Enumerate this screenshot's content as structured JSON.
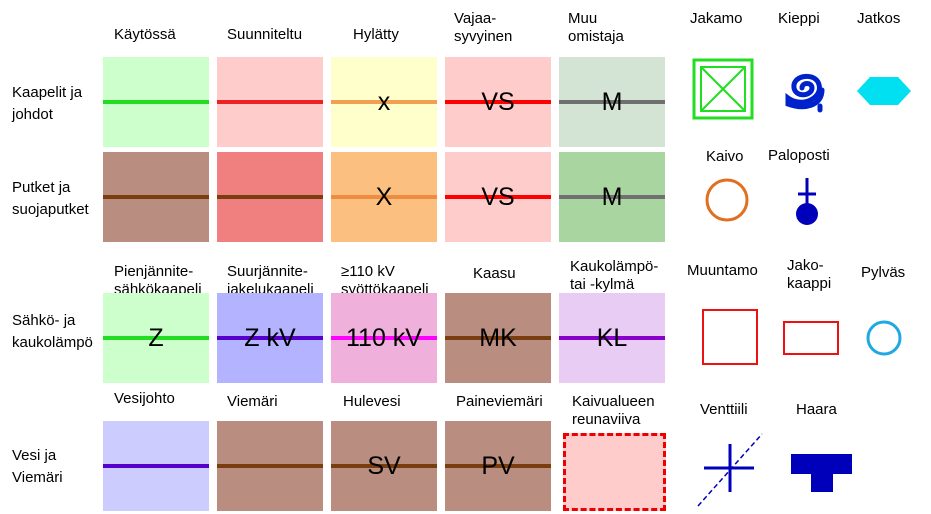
{
  "columns": [
    "Käytössä",
    "Suunniteltu",
    "Hylätty",
    "Vajaa-\nsyvyinen",
    "Muu\nomistaja"
  ],
  "rows": {
    "kaapelit": "Kaapelit ja\njohdot",
    "putket": "Putket ja\nsuojaputket",
    "sahko": "Sähkö- ja\nkaukolämpö",
    "vesi": "Vesi ja\nViemäri"
  },
  "grid_row1": [
    {
      "bg": "#ccffcc",
      "line": "#22dd22",
      "text": ""
    },
    {
      "bg": "#ffcccc",
      "line": "#ee2222",
      "text": ""
    },
    {
      "bg": "#ffffcc",
      "line": "#f0a050",
      "text": "x"
    },
    {
      "bg": "#ffcccc",
      "line": "#ff0000",
      "text": "VS"
    },
    {
      "bg": "#d4e4d4",
      "line": "#707070",
      "text": "M"
    }
  ],
  "grid_row2": [
    {
      "bg": "#b98d7f",
      "line": "#7a3d10",
      "text": ""
    },
    {
      "bg": "#f08080",
      "line": "#7a3d10",
      "text": ""
    },
    {
      "bg": "#fbbf80",
      "line": "#f08c40",
      "text": "X"
    },
    {
      "bg": "#ffcccc",
      "line": "#ff0000",
      "text": "VS"
    },
    {
      "bg": "#a9d5a0",
      "line": "#707070",
      "text": "M"
    }
  ],
  "sahko_labels": [
    "Pienjännite-\nsähkökaapeli",
    "Suurjännite-\njakelukaapeli",
    "≥110 kV\nsyöttökaapeli",
    "Kaasu",
    "Kaukolämpö-\ntai -kylmä"
  ],
  "sahko_cells": [
    {
      "bg": "#ccffcc",
      "line": "#22dd22",
      "text": "Z"
    },
    {
      "bg": "#b3b3ff",
      "line": "#5500cc",
      "text": "Z kV"
    },
    {
      "bg": "#f0b0dc",
      "line": "#ff00ff",
      "text": "110 kV"
    },
    {
      "bg": "#b98d7f",
      "line": "#7a3d10",
      "text": "MK"
    },
    {
      "bg": "#e8ccf4",
      "line": "#8800cc",
      "text": "KL"
    }
  ],
  "vesi_labels": [
    "Vesijohto",
    "Viemäri",
    "Hulevesi",
    "Paineviemäri",
    "Kaivualueen\nreunaviiva"
  ],
  "vesi_cells": [
    {
      "bg": "#ccccff",
      "line": "#5500cc",
      "text": ""
    },
    {
      "bg": "#b98d7f",
      "line": "#7a3d10",
      "text": ""
    },
    {
      "bg": "#b98d7f",
      "line": "#7a3d10",
      "text": "SV"
    },
    {
      "bg": "#b98d7f",
      "line": "#7a3d10",
      "text": "PV"
    }
  ],
  "symbols": {
    "jakamo": "Jakamo",
    "kieppi": "Kieppi",
    "jatkos": "Jatkos",
    "kaivo": "Kaivo",
    "paloposti": "Paloposti",
    "muuntamo": "Muuntamo",
    "jakokaappi": "Jako-\nkaappi",
    "pylvas": "Pylväs",
    "venttiili": "Venttiili",
    "haara": "Haara"
  },
  "colors": {
    "jakamo": "#22dd22",
    "kieppi": "#0022cc",
    "jatkos": "#00e0f0",
    "kaivo": "#e07020",
    "paloposti": "#0000bb",
    "muuntamo": "#ee1111",
    "pylvas": "#20a8e0",
    "venttiili": "#0000bb",
    "haara": "#0000bb",
    "kaivualue_bg": "#ffcccc",
    "kaivualue_border": "#ee0000"
  }
}
